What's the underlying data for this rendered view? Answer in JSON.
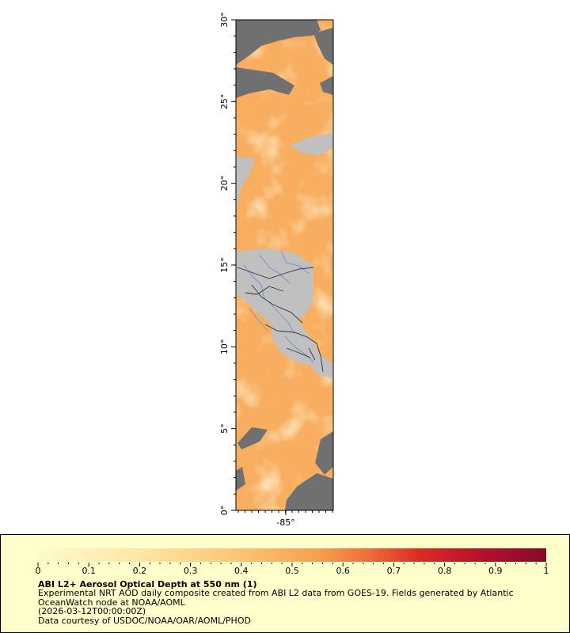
{
  "map": {
    "lat_ticks": [
      "0°",
      "5°",
      "10°",
      "15°",
      "20°",
      "25°",
      "30°"
    ],
    "lon_ticks": [
      "-85°"
    ],
    "colors": {
      "land": "#c0c0c0",
      "no_data": "#707070",
      "boundary": "#333333",
      "river": "#6f8fc9",
      "aod_low": "#ffe4a0",
      "aod_mid": "#f8b060",
      "aod_high": "#e04030"
    }
  },
  "legend": {
    "ticks": [
      "0",
      "0.1",
      "0.2",
      "0.3",
      "0.4",
      "0.5",
      "0.6",
      "0.7",
      "0.8",
      "0.9",
      "1"
    ],
    "range": [
      0,
      1
    ],
    "title": "ABI L2+ Aerosol Optical Depth at 550 nm (1)",
    "desc_line1": "Experimental NRT AOD daily composite created from ABI L2 data from GOES-19. Fields generated by Atlantic",
    "desc_line2": "OceanWatch node at NOAA/AOML",
    "timestamp": "(2026-03-12T00:00:00Z)",
    "credit": "Data courtesy of USDOC/NOAA/OAR/AOML/PHOD"
  }
}
